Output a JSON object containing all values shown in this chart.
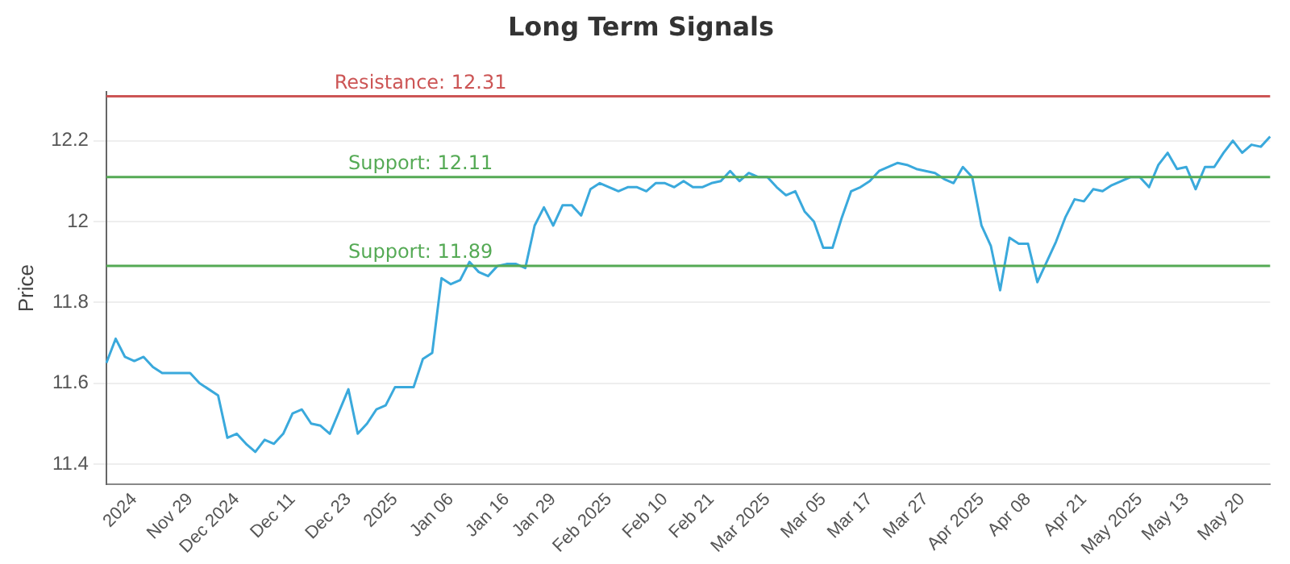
{
  "chart_data": {
    "type": "line",
    "title": "Long Term Signals",
    "ylabel": "Price",
    "categories": [
      null,
      null,
      null,
      "2024",
      null,
      null,
      null,
      null,
      null,
      "Nov 29",
      null,
      null,
      null,
      null,
      "Dec 2024",
      null,
      null,
      null,
      null,
      null,
      "Dec 11",
      null,
      null,
      null,
      null,
      null,
      "Dec 23",
      null,
      null,
      null,
      null,
      "2025",
      null,
      null,
      null,
      null,
      null,
      "Jan 06",
      null,
      null,
      null,
      null,
      null,
      "Jan 16",
      null,
      null,
      null,
      null,
      "Jan 29",
      null,
      null,
      null,
      null,
      null,
      "Feb 2025",
      null,
      null,
      null,
      null,
      null,
      "Feb 10",
      null,
      null,
      null,
      null,
      "Feb 21",
      null,
      null,
      null,
      null,
      null,
      "Mar 2025",
      null,
      null,
      null,
      null,
      null,
      "Mar 05",
      null,
      null,
      null,
      null,
      "Mar 17",
      null,
      null,
      null,
      null,
      null,
      "Mar 27",
      null,
      null,
      null,
      null,
      null,
      "Apr 2025",
      null,
      null,
      null,
      null,
      "Apr 08",
      null,
      null,
      null,
      null,
      null,
      "Apr 21",
      null,
      null,
      null,
      null,
      null,
      "May 2025",
      null,
      null,
      null,
      null,
      "May 13",
      null,
      null,
      null,
      null,
      null,
      "May 20",
      null,
      null,
      null
    ],
    "series": [
      {
        "color": "#3aa9dc",
        "values": [
          11.65,
          11.71,
          11.665,
          11.655,
          11.665,
          11.64,
          11.625,
          11.625,
          11.625,
          11.625,
          11.6,
          11.585,
          11.57,
          11.465,
          11.475,
          11.45,
          11.43,
          11.46,
          11.45,
          11.475,
          11.525,
          11.535,
          11.5,
          11.495,
          11.475,
          11.53,
          11.585,
          11.475,
          11.5,
          11.535,
          11.545,
          11.59,
          11.59,
          11.59,
          11.66,
          11.675,
          11.86,
          11.845,
          11.855,
          11.9,
          11.875,
          11.865,
          11.89,
          11.895,
          11.895,
          11.885,
          11.99,
          12.035,
          11.99,
          12.04,
          12.04,
          12.015,
          12.08,
          12.095,
          12.085,
          12.075,
          12.085,
          12.085,
          12.075,
          12.095,
          12.095,
          12.085,
          12.1,
          12.085,
          12.085,
          12.095,
          12.1,
          12.125,
          12.1,
          12.12,
          12.11,
          12.11,
          12.085,
          12.065,
          12.075,
          12.025,
          12.0,
          11.935,
          11.935,
          12.01,
          12.075,
          12.085,
          12.1,
          12.125,
          12.135,
          12.145,
          12.14,
          12.13,
          12.125,
          12.12,
          12.105,
          12.095,
          12.135,
          12.11,
          11.99,
          11.94,
          11.83,
          11.96,
          11.945,
          11.945,
          11.85,
          11.9,
          11.95,
          12.01,
          12.055,
          12.05,
          12.08,
          12.075,
          12.09,
          12.1,
          12.11,
          12.11,
          12.085,
          12.14,
          12.17,
          12.13,
          12.135,
          12.08,
          12.135,
          12.135,
          12.17,
          12.2,
          12.17,
          12.19,
          12.185,
          12.21
        ]
      }
    ],
    "ylim": [
      11.35,
      12.32
    ],
    "yticks": [
      11.4,
      11.6,
      11.8,
      12.0,
      12.2
    ],
    "ref_lines": [
      {
        "axis": "y",
        "value": 12.31,
        "label": "Resistance: 12.31",
        "color": "#cc5555"
      },
      {
        "axis": "y",
        "value": 12.11,
        "label": "Support: 12.11",
        "color": "#55aa55"
      },
      {
        "axis": "y",
        "value": 11.89,
        "label": "Support: 11.89",
        "color": "#55aa55"
      }
    ],
    "grid": "y",
    "legend": false,
    "marker": "none",
    "line_style": "solid"
  }
}
